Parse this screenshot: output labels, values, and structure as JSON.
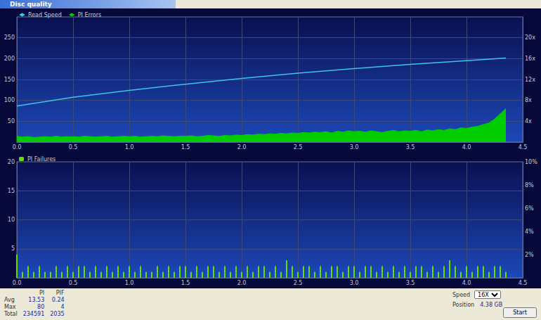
{
  "window": {
    "title": "Disc quality"
  },
  "chart_data": [
    {
      "type": "line",
      "legend": "top-left",
      "grid": true,
      "xlim": [
        0,
        4.5
      ],
      "xticks": [
        {
          "value": 0,
          "label": "0.0"
        },
        {
          "value": 0.5,
          "label": "0.5"
        },
        {
          "value": 1,
          "label": "1.0"
        },
        {
          "value": 1.5,
          "label": "1.5"
        },
        {
          "value": 2,
          "label": "2.0"
        },
        {
          "value": 2.5,
          "label": "2.5"
        },
        {
          "value": 3,
          "label": "3.0"
        },
        {
          "value": 3.5,
          "label": "3.5"
        },
        {
          "value": 4,
          "label": "4.0"
        },
        {
          "value": 4.5,
          "label": "4.5"
        }
      ],
      "ylim": [
        0,
        300
      ],
      "yticks": [
        50,
        100,
        150,
        200,
        250
      ],
      "y2lim": [
        0,
        24
      ],
      "y2ticks": [
        {
          "value": 4,
          "label": "4x"
        },
        {
          "value": 8,
          "label": "8x"
        },
        {
          "value": 12,
          "label": "12x"
        },
        {
          "value": 16,
          "label": "16x"
        },
        {
          "value": 20,
          "label": "20x"
        }
      ],
      "series": [
        {
          "name": "Read Speed",
          "type": "line",
          "axis": "y2",
          "color": "#3fc4e8",
          "x": [
            0,
            0.5,
            1,
            1.5,
            2,
            2.5,
            3,
            3.5,
            4,
            4.35
          ],
          "values": [
            6.9,
            8.6,
            9.9,
            11.1,
            12.2,
            13.2,
            14.1,
            14.9,
            15.6,
            16.1
          ]
        },
        {
          "name": "PI Errors",
          "type": "area",
          "axis": "y",
          "color": "#00cc00",
          "x": [
            0,
            0.05,
            0.1,
            0.15,
            0.2,
            0.25,
            0.3,
            0.35,
            0.4,
            0.45,
            0.5,
            0.55,
            0.6,
            0.65,
            0.7,
            0.75,
            0.8,
            0.85,
            0.9,
            0.95,
            1,
            1.05,
            1.1,
            1.15,
            1.2,
            1.25,
            1.3,
            1.35,
            1.4,
            1.45,
            1.5,
            1.55,
            1.6,
            1.65,
            1.7,
            1.75,
            1.8,
            1.85,
            1.9,
            1.95,
            2,
            2.05,
            2.1,
            2.15,
            2.2,
            2.25,
            2.3,
            2.35,
            2.4,
            2.45,
            2.5,
            2.55,
            2.6,
            2.65,
            2.7,
            2.75,
            2.8,
            2.85,
            2.9,
            2.95,
            3,
            3.05,
            3.1,
            3.15,
            3.2,
            3.25,
            3.3,
            3.35,
            3.4,
            3.45,
            3.5,
            3.55,
            3.6,
            3.65,
            3.7,
            3.75,
            3.8,
            3.85,
            3.9,
            3.95,
            4,
            4.05,
            4.1,
            4.15,
            4.2,
            4.25,
            4.3,
            4.35
          ],
          "values": [
            14,
            12,
            13,
            11,
            12,
            13,
            12,
            14,
            12,
            13,
            13,
            12,
            14,
            13,
            12,
            13,
            14,
            12,
            13,
            14,
            13,
            14,
            12,
            13,
            14,
            13,
            15,
            14,
            13,
            14,
            14,
            15,
            13,
            14,
            16,
            15,
            14,
            16,
            15,
            17,
            16,
            18,
            17,
            19,
            18,
            20,
            19,
            21,
            20,
            22,
            21,
            23,
            22,
            24,
            23,
            25,
            22,
            26,
            24,
            27,
            25,
            26,
            24,
            27,
            25,
            23,
            26,
            28,
            25,
            27,
            26,
            28,
            25,
            29,
            27,
            30,
            28,
            32,
            30,
            34,
            33,
            36,
            38,
            42,
            46,
            55,
            68,
            80
          ]
        }
      ]
    },
    {
      "type": "bar",
      "legend": "top-left",
      "grid": true,
      "xlim": [
        0,
        4.5
      ],
      "xticks": [
        {
          "value": 0,
          "label": "0.0"
        },
        {
          "value": 0.5,
          "label": "0.5"
        },
        {
          "value": 1,
          "label": "1.0"
        },
        {
          "value": 1.5,
          "label": "1.5"
        },
        {
          "value": 2,
          "label": "2.0"
        },
        {
          "value": 2.5,
          "label": "2.5"
        },
        {
          "value": 3,
          "label": "3.0"
        },
        {
          "value": 3.5,
          "label": "3.5"
        },
        {
          "value": 4,
          "label": "4.0"
        },
        {
          "value": 4.5,
          "label": "4.5"
        }
      ],
      "ylim": [
        0,
        20
      ],
      "yticks": [
        5,
        10,
        15,
        20
      ],
      "y2lim": [
        0,
        10
      ],
      "y2ticks": [
        {
          "value": 2,
          "label": "2%"
        },
        {
          "value": 4,
          "label": "4%"
        },
        {
          "value": 6,
          "label": "6%"
        },
        {
          "value": 8,
          "label": "8%"
        },
        {
          "value": 10,
          "label": "10%"
        }
      ],
      "series": [
        {
          "name": "PI Failures",
          "type": "bar",
          "axis": "y",
          "color": "#66dd00",
          "x": [
            0,
            0.05,
            0.1,
            0.15,
            0.2,
            0.25,
            0.3,
            0.35,
            0.4,
            0.45,
            0.5,
            0.55,
            0.6,
            0.65,
            0.7,
            0.75,
            0.8,
            0.85,
            0.9,
            0.95,
            1,
            1.05,
            1.1,
            1.15,
            1.2,
            1.25,
            1.3,
            1.35,
            1.4,
            1.45,
            1.5,
            1.55,
            1.6,
            1.65,
            1.7,
            1.75,
            1.8,
            1.85,
            1.9,
            1.95,
            2,
            2.05,
            2.1,
            2.15,
            2.2,
            2.25,
            2.3,
            2.35,
            2.4,
            2.45,
            2.5,
            2.55,
            2.6,
            2.65,
            2.7,
            2.75,
            2.8,
            2.85,
            2.9,
            2.95,
            3,
            3.05,
            3.1,
            3.15,
            3.2,
            3.25,
            3.3,
            3.35,
            3.4,
            3.45,
            3.5,
            3.55,
            3.6,
            3.65,
            3.7,
            3.75,
            3.8,
            3.85,
            3.9,
            3.95,
            4,
            4.05,
            4.1,
            4.15,
            4.2,
            4.25,
            4.3,
            4.35
          ],
          "values": [
            4,
            1,
            2,
            1,
            2,
            1,
            1,
            2,
            1,
            2,
            1,
            2,
            2,
            1,
            2,
            1,
            2,
            1,
            2,
            1,
            2,
            1,
            2,
            1,
            1,
            2,
            1,
            2,
            1,
            2,
            2,
            1,
            2,
            1,
            2,
            2,
            1,
            2,
            1,
            2,
            1,
            2,
            1,
            2,
            2,
            1,
            2,
            1,
            3,
            2,
            1,
            2,
            2,
            1,
            2,
            1,
            2,
            2,
            1,
            2,
            2,
            1,
            2,
            2,
            1,
            2,
            1,
            2,
            1,
            2,
            1,
            2,
            2,
            1,
            2,
            1,
            2,
            3,
            2,
            1,
            2,
            1,
            2,
            2,
            1,
            2,
            2,
            1
          ]
        }
      ]
    }
  ],
  "stats": {
    "columns": [
      "PI",
      "PIF"
    ],
    "rows": [
      {
        "label": "Avg",
        "values": [
          13.53,
          0.24
        ]
      },
      {
        "label": "Max",
        "values": [
          80,
          4
        ]
      },
      {
        "label": "Total",
        "values": [
          234591,
          2035
        ]
      }
    ]
  },
  "controls": {
    "speed_label": "Speed",
    "speed_value": "16X",
    "position_label": "Position",
    "position_value": "4.38 GB",
    "button": "Start"
  }
}
